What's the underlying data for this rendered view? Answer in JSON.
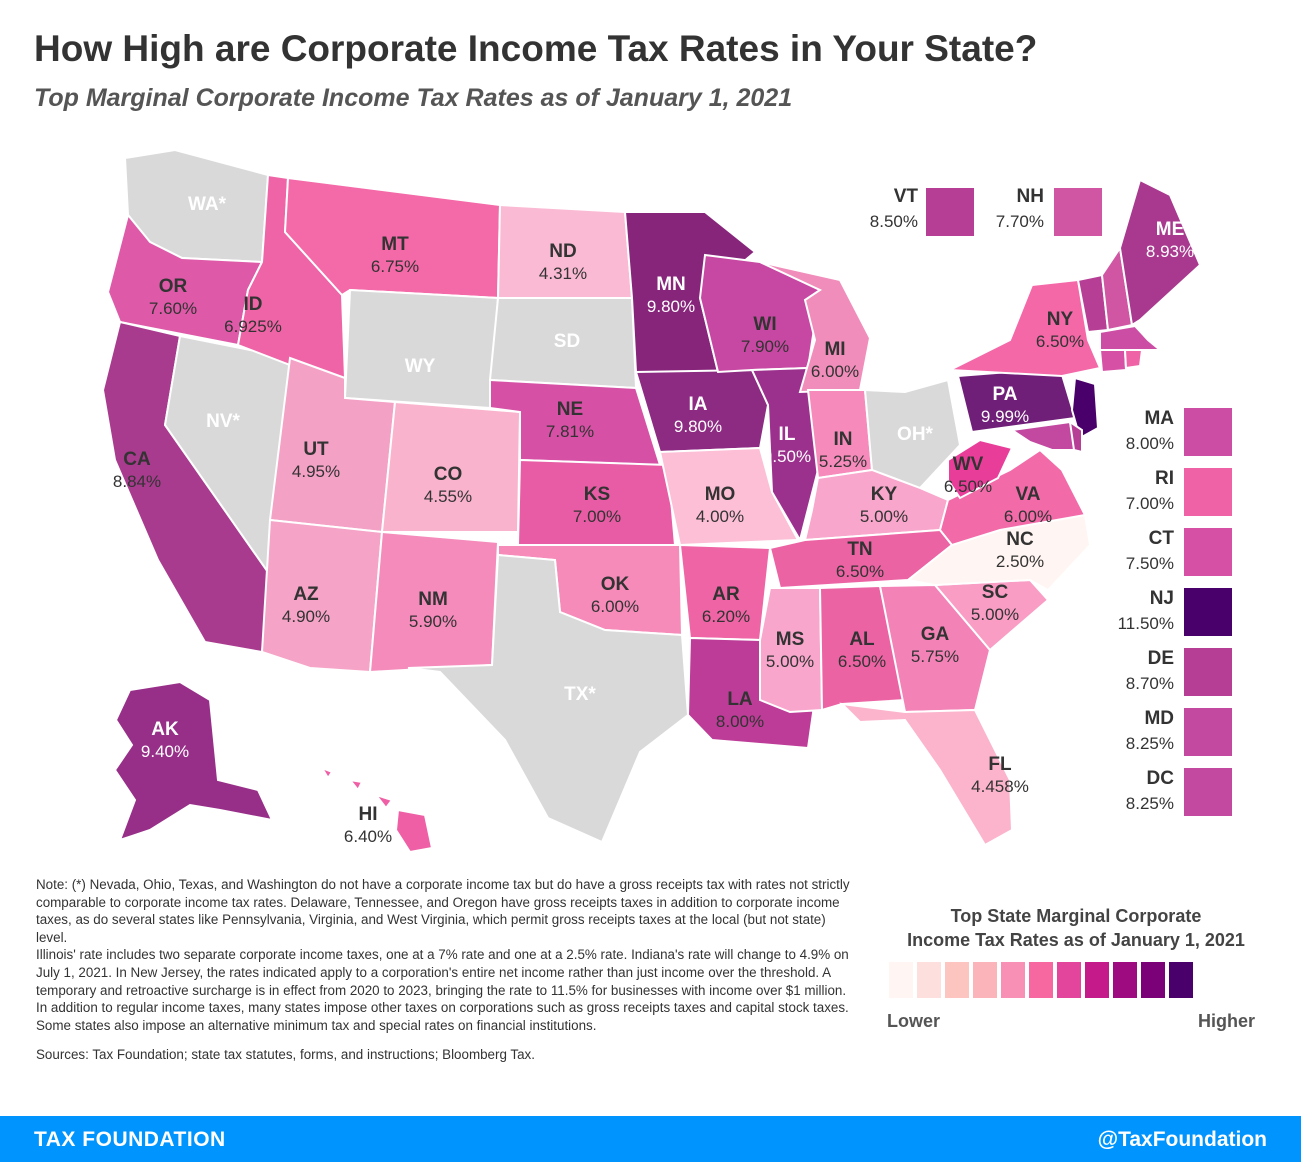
{
  "header": {
    "title": "How High are Corporate Income Tax Rates in Your State?",
    "subtitle": "Top Marginal Corporate Income Tax Rates as of January 1, 2021"
  },
  "colors": {
    "none": "#d9d9d9",
    "scale": [
      "#fff5f2",
      "#fde0dd",
      "#fcc5c0",
      "#fbb4b9",
      "#f890b5",
      "#f768a1",
      "#e3449c",
      "#c51b8a",
      "#9e0a7f",
      "#7a0177",
      "#49006a"
    ]
  },
  "states": {
    "WA": {
      "abbr": "WA*",
      "rate": ""
    },
    "OR": {
      "abbr": "OR",
      "rate": "7.60%"
    },
    "CA": {
      "abbr": "CA",
      "rate": "8.84%"
    },
    "NV": {
      "abbr": "NV*",
      "rate": ""
    },
    "ID": {
      "abbr": "ID",
      "rate": "6.925%"
    },
    "MT": {
      "abbr": "MT",
      "rate": "6.75%"
    },
    "WY": {
      "abbr": "WY",
      "rate": ""
    },
    "UT": {
      "abbr": "UT",
      "rate": "4.95%"
    },
    "CO": {
      "abbr": "CO",
      "rate": "4.55%"
    },
    "AZ": {
      "abbr": "AZ",
      "rate": "4.90%"
    },
    "NM": {
      "abbr": "NM",
      "rate": "5.90%"
    },
    "ND": {
      "abbr": "ND",
      "rate": "4.31%"
    },
    "SD": {
      "abbr": "SD",
      "rate": ""
    },
    "NE": {
      "abbr": "NE",
      "rate": "7.81%"
    },
    "KS": {
      "abbr": "KS",
      "rate": "7.00%"
    },
    "OK": {
      "abbr": "OK",
      "rate": "6.00%"
    },
    "TX": {
      "abbr": "TX*",
      "rate": ""
    },
    "MN": {
      "abbr": "MN",
      "rate": "9.80%"
    },
    "IA": {
      "abbr": "IA",
      "rate": "9.80%"
    },
    "MO": {
      "abbr": "MO",
      "rate": "4.00%"
    },
    "AR": {
      "abbr": "AR",
      "rate": "6.20%"
    },
    "LA": {
      "abbr": "LA",
      "rate": "8.00%"
    },
    "WI": {
      "abbr": "WI",
      "rate": "7.90%"
    },
    "IL": {
      "abbr": "IL",
      "rate": "9.50%"
    },
    "MI": {
      "abbr": "MI",
      "rate": "6.00%"
    },
    "IN": {
      "abbr": "IN",
      "rate": "5.25%"
    },
    "OH": {
      "abbr": "OH*",
      "rate": ""
    },
    "KY": {
      "abbr": "KY",
      "rate": "5.00%"
    },
    "TN": {
      "abbr": "TN",
      "rate": "6.50%"
    },
    "MS": {
      "abbr": "MS",
      "rate": "5.00%"
    },
    "AL": {
      "abbr": "AL",
      "rate": "6.50%"
    },
    "GA": {
      "abbr": "GA",
      "rate": "5.75%"
    },
    "FL": {
      "abbr": "FL",
      "rate": "4.458%"
    },
    "SC": {
      "abbr": "SC",
      "rate": "5.00%"
    },
    "NC": {
      "abbr": "NC",
      "rate": "2.50%"
    },
    "VA": {
      "abbr": "VA",
      "rate": "6.00%"
    },
    "WV": {
      "abbr": "WV",
      "rate": "6.50%"
    },
    "PA": {
      "abbr": "PA",
      "rate": "9.99%"
    },
    "NY": {
      "abbr": "NY",
      "rate": "6.50%"
    },
    "ME": {
      "abbr": "ME",
      "rate": "8.93%"
    },
    "AK": {
      "abbr": "AK",
      "rate": "9.40%"
    },
    "HI": {
      "abbr": "HI",
      "rate": "6.40%"
    }
  },
  "callouts": {
    "VT": {
      "abbr": "VT",
      "rate": "8.50%"
    },
    "NH": {
      "abbr": "NH",
      "rate": "7.70%"
    },
    "MA": {
      "abbr": "MA",
      "rate": "8.00%"
    },
    "RI": {
      "abbr": "RI",
      "rate": "7.00%"
    },
    "CT": {
      "abbr": "CT",
      "rate": "7.50%"
    },
    "NJ": {
      "abbr": "NJ",
      "rate": "11.50%"
    },
    "DE": {
      "abbr": "DE",
      "rate": "8.70%"
    },
    "MD": {
      "abbr": "MD",
      "rate": "8.25%"
    },
    "DC": {
      "abbr": "DC",
      "rate": "8.25%"
    }
  },
  "notes": {
    "note1": "Note: (*) Nevada, Ohio, Texas, and Washington do not have a corporate income tax but do have a gross receipts tax with rates not strictly comparable to corporate income tax rates. Delaware, Tennessee, and Oregon have gross receipts taxes in addition to corporate income taxes, as do several states like Pennsylvania, Virginia, and West Virginia, which permit gross receipts taxes at the local (but not state) level.",
    "note2": "Illinois' rate includes two separate corporate income taxes, one at a 7% rate and one at a 2.5% rate.  Indiana's rate will change to 4.9% on July 1, 2021.  In New Jersey, the rates indicated apply to a corporation's entire net income rather than just income over the threshold. A temporary and retroactive surcharge is in effect from 2020 to 2023, bringing the rate to 11.5% for businesses with income over $1 million. In addition to regular income taxes, many states impose other taxes on corporations such as gross receipts taxes and capital stock taxes. Some states also impose an alternative minimum tax and special rates on financial institutions.",
    "sources": "Sources: Tax Foundation; state tax statutes, forms, and instructions; Bloomberg Tax."
  },
  "legend": {
    "title_line1": "Top State Marginal Corporate",
    "title_line2": "Income Tax Rates as of January 1, 2021",
    "lower": "Lower",
    "higher": "Higher"
  },
  "footer": {
    "brand": "TAX FOUNDATION",
    "handle": "@TaxFoundation"
  }
}
